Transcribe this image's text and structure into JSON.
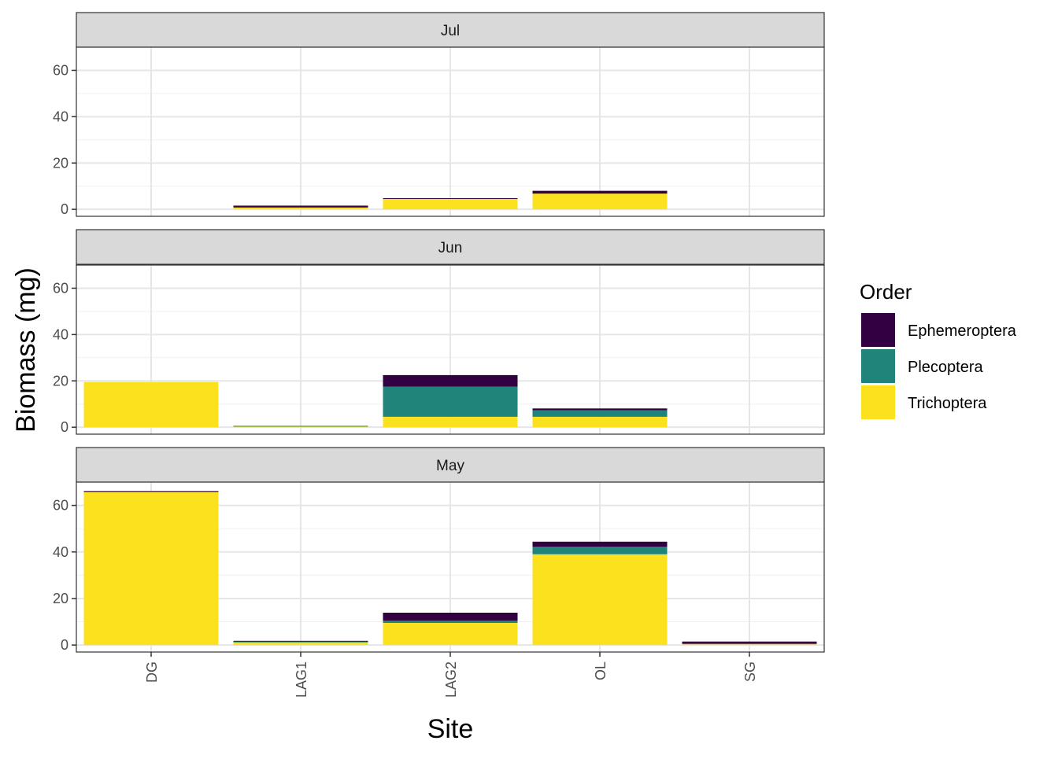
{
  "chart_data": {
    "type": "bar",
    "stacked": true,
    "facet_by": "month",
    "xlabel": "Site",
    "ylabel": "Biomass (mg)",
    "ylim": [
      -3,
      70
    ],
    "y_ticks": [
      0,
      20,
      40,
      60
    ],
    "categories": [
      "DG",
      "LAG1",
      "LAG2",
      "OL",
      "SG"
    ],
    "grid": true,
    "legend": {
      "title": "Order",
      "position": "right",
      "items": [
        {
          "name": "Ephemeroptera",
          "color": "#330042"
        },
        {
          "name": "Plecoptera",
          "color": "#21847b"
        },
        {
          "name": "Trichoptera",
          "color": "#fce21e"
        }
      ]
    },
    "panels": [
      {
        "label": "Jul",
        "series": [
          {
            "name": "Trichoptera",
            "values": [
              0,
              0.8,
              4.5,
              6.8,
              0
            ]
          },
          {
            "name": "Plecoptera",
            "values": [
              0,
              0,
              0,
              0,
              0
            ]
          },
          {
            "name": "Ephemeroptera",
            "values": [
              0,
              0.8,
              0.3,
              1.2,
              0
            ]
          }
        ]
      },
      {
        "label": "Jun",
        "series": [
          {
            "name": "Trichoptera",
            "values": [
              19.5,
              0.3,
              4.5,
              4.5,
              0
            ]
          },
          {
            "name": "Plecoptera",
            "values": [
              0,
              0.3,
              13,
              2.8,
              0
            ]
          },
          {
            "name": "Ephemeroptera",
            "values": [
              0,
              0,
              5,
              0.8,
              0
            ]
          }
        ]
      },
      {
        "label": "May",
        "series": [
          {
            "name": "Trichoptera",
            "values": [
              65.8,
              1.2,
              9.5,
              39,
              0.5
            ]
          },
          {
            "name": "Plecoptera",
            "values": [
              0,
              0.3,
              1,
              3.2,
              0
            ]
          },
          {
            "name": "Ephemeroptera",
            "values": [
              0.4,
              0.3,
              3.4,
              2.2,
              1
            ]
          }
        ]
      }
    ]
  }
}
